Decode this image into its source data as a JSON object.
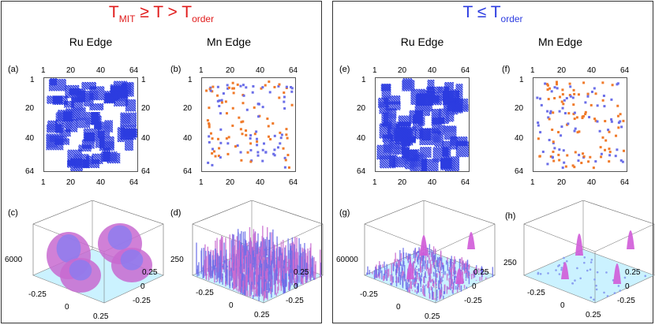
{
  "left": {
    "title": {
      "main": "T",
      "sub1": "MIT",
      "mid": " ≥ T > T",
      "sub2": "order"
    },
    "col1": "Ru Edge",
    "col2": "Mn Edge",
    "panels": {
      "a": "(a)",
      "b": "(b)",
      "c": "(c)",
      "d": "(d)"
    },
    "zlabels": {
      "c": "6000",
      "d": "250"
    }
  },
  "right": {
    "title": {
      "main": "T ≤ T",
      "sub": "order"
    },
    "col1": "Ru Edge",
    "col2": "Mn Edge",
    "panels": {
      "e": "(e)",
      "f": "(f)",
      "g": "(g)",
      "h": "(h)"
    },
    "zlabels": {
      "g": "60000",
      "h": "250"
    }
  },
  "ticks": {
    "t1": "1",
    "t20": "20",
    "t40": "40",
    "t64": "64"
  },
  "axis": {
    "neg": "-0.25",
    "zero": "0",
    "pos": "0.25"
  },
  "colors": {
    "red": "#e01b1b",
    "blue": "#2c3ce0",
    "orange": "#f07a2a",
    "pink": "#c86ad0",
    "cyan": "#bfefff"
  }
}
